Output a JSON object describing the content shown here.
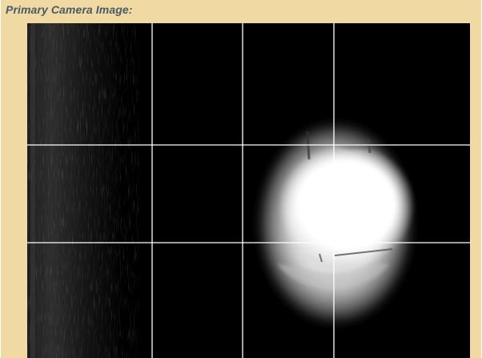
{
  "panel": {
    "title": "Primary Camera Image:"
  },
  "camera": {
    "image_name": "primary-camera-feed",
    "grid": {
      "columns": 4,
      "rows": 3,
      "line_color": "#ffffff"
    },
    "colors": {
      "background": "#000000",
      "panel": "#f1d9a4",
      "title_text": "#4a5a64"
    }
  }
}
